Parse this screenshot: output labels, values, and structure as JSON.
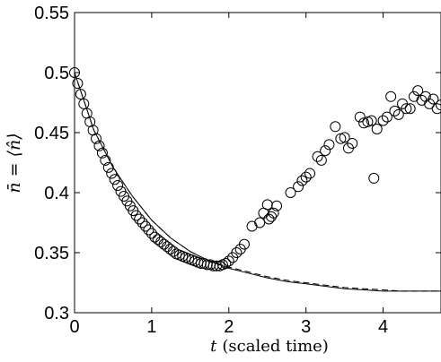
{
  "chart_data": {
    "type": "scatter",
    "xlabel_var": "t",
    "xlabel_text": "(scaled time)",
    "ylabel": "n̄ = ⟨n̂⟩",
    "xlim": [
      0,
      4.75
    ],
    "ylim": [
      0.3,
      0.55
    ],
    "x_ticks": [
      "0",
      "1",
      "2",
      "3",
      "4"
    ],
    "y_ticks": [
      "0.3",
      "0.35",
      "0.4",
      "0.45",
      "0.5",
      "0.55"
    ],
    "grid": false,
    "colors": {
      "line": "#000000",
      "marker": "#000000",
      "background": "#ffffff"
    },
    "series": [
      {
        "kind": "markers",
        "marker": "open-circle",
        "x": [
          0.0,
          0.04,
          0.08,
          0.12,
          0.16,
          0.2,
          0.24,
          0.28,
          0.32,
          0.36,
          0.4,
          0.44,
          0.48,
          0.52,
          0.56,
          0.6,
          0.64,
          0.68,
          0.72,
          0.76,
          0.8,
          0.84,
          0.88,
          0.92,
          0.96,
          1.0,
          1.04,
          1.08,
          1.12,
          1.16,
          1.2,
          1.24,
          1.28,
          1.32,
          1.36,
          1.4,
          1.44,
          1.48,
          1.52,
          1.56,
          1.6,
          1.64,
          1.68,
          1.72,
          1.76,
          1.8,
          1.84,
          1.88,
          1.92,
          1.96,
          2.0,
          2.05,
          2.1,
          2.15,
          2.2,
          2.3,
          2.4,
          2.45,
          2.5,
          2.52,
          2.55,
          2.58,
          2.62,
          2.8,
          2.9,
          2.95,
          3.0,
          3.05,
          3.15,
          3.2,
          3.25,
          3.3,
          3.38,
          3.45,
          3.5,
          3.55,
          3.6,
          3.7,
          3.75,
          3.8,
          3.85,
          3.88,
          3.92,
          4.0,
          4.05,
          4.1,
          4.15,
          4.2,
          4.25,
          4.3,
          4.35,
          4.4,
          4.45,
          4.5,
          4.55,
          4.6,
          4.65,
          4.7,
          4.75
        ],
        "y": [
          0.5,
          0.491,
          0.482,
          0.474,
          0.466,
          0.459,
          0.452,
          0.445,
          0.439,
          0.433,
          0.427,
          0.421,
          0.416,
          0.411,
          0.406,
          0.401,
          0.397,
          0.393,
          0.389,
          0.385,
          0.381,
          0.378,
          0.375,
          0.372,
          0.369,
          0.366,
          0.363,
          0.361,
          0.359,
          0.357,
          0.355,
          0.353,
          0.351,
          0.349,
          0.348,
          0.347,
          0.346,
          0.345,
          0.344,
          0.343,
          0.342,
          0.341,
          0.341,
          0.34,
          0.34,
          0.339,
          0.339,
          0.339,
          0.34,
          0.341,
          0.343,
          0.346,
          0.35,
          0.353,
          0.357,
          0.372,
          0.375,
          0.383,
          0.39,
          0.378,
          0.38,
          0.383,
          0.389,
          0.4,
          0.405,
          0.41,
          0.413,
          0.416,
          0.43,
          0.427,
          0.435,
          0.44,
          0.455,
          0.445,
          0.446,
          0.437,
          0.441,
          0.463,
          0.458,
          0.459,
          0.46,
          0.412,
          0.453,
          0.46,
          0.463,
          0.48,
          0.468,
          0.465,
          0.474,
          0.47,
          0.47,
          0.48,
          0.485,
          0.477,
          0.48,
          0.474,
          0.478,
          0.47,
          0.473
        ]
      },
      {
        "kind": "solid-line",
        "x": [
          0,
          0.25,
          0.5,
          0.75,
          1.0,
          1.25,
          1.5,
          1.75,
          2.0,
          2.25,
          2.5,
          2.75,
          3.0,
          3.25,
          3.5,
          3.75,
          4.0,
          4.25,
          4.5,
          4.75
        ],
        "y": [
          0.5,
          0.452,
          0.421,
          0.397,
          0.377,
          0.362,
          0.351,
          0.343,
          0.337,
          0.333,
          0.329,
          0.326,
          0.324,
          0.322,
          0.32,
          0.319,
          0.318,
          0.318,
          0.318,
          0.318
        ]
      },
      {
        "kind": "dashed-line",
        "x": [
          0,
          0.25,
          0.5,
          0.75,
          1.0,
          1.25,
          1.5,
          1.75,
          2.0,
          2.25,
          2.5,
          2.75,
          3.0,
          3.25,
          3.5,
          3.75,
          4.0,
          4.25,
          4.5,
          4.75
        ],
        "y": [
          0.5,
          0.452,
          0.421,
          0.397,
          0.377,
          0.362,
          0.351,
          0.343,
          0.338,
          0.334,
          0.33,
          0.327,
          0.325,
          0.323,
          0.321,
          0.32,
          0.319,
          0.318,
          0.318,
          0.318
        ]
      }
    ]
  }
}
